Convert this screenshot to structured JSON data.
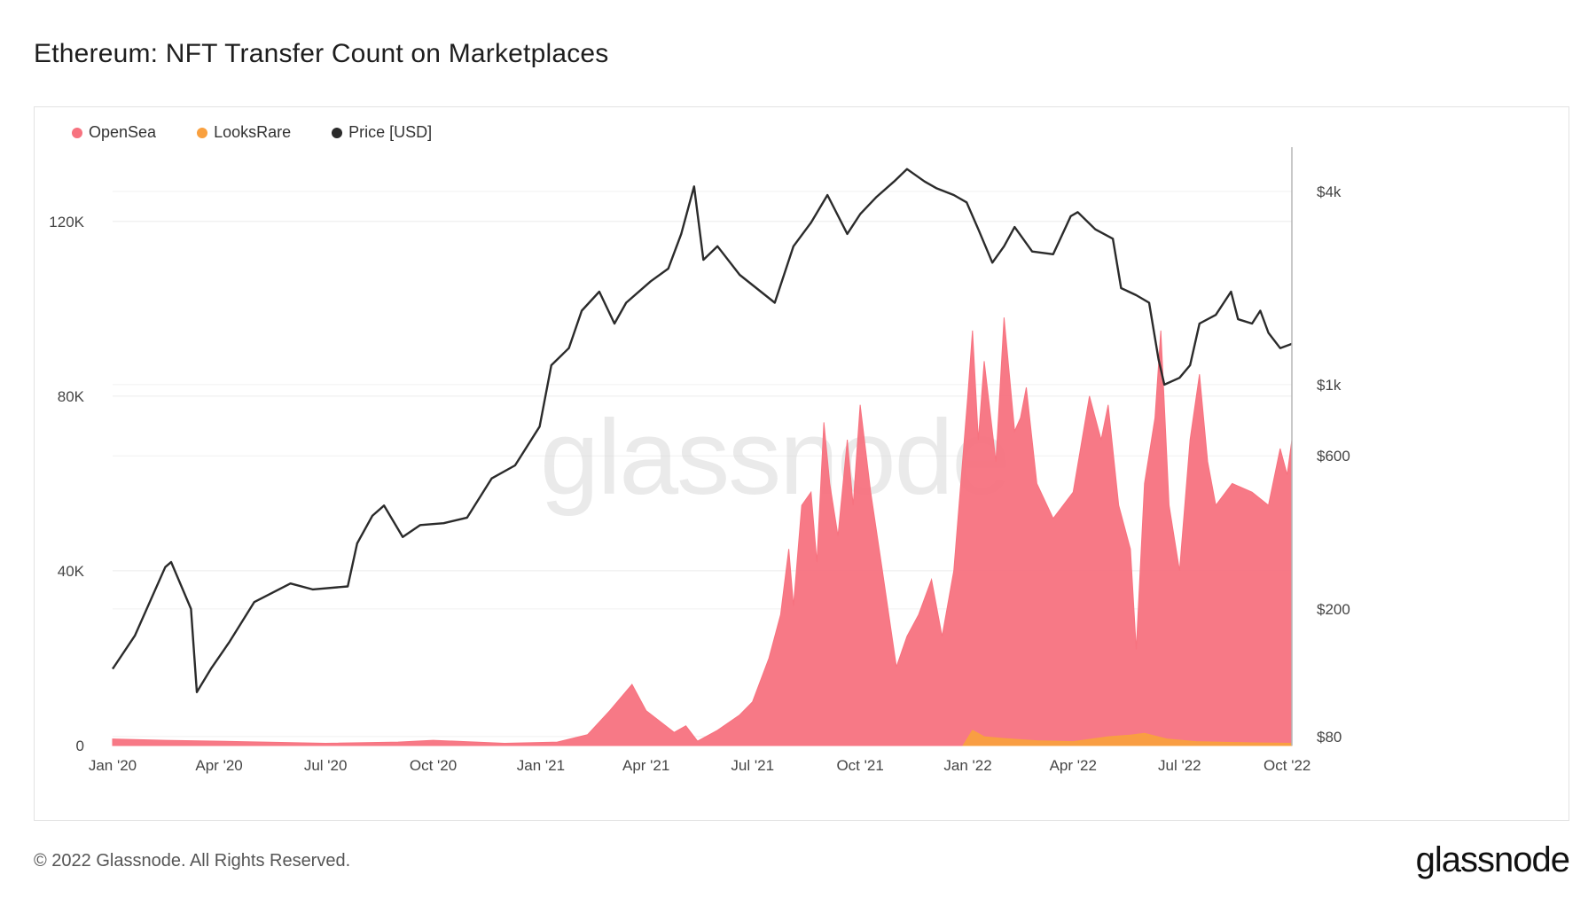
{
  "title": "Ethereum: NFT Transfer Count on Marketplaces",
  "footer": {
    "copyright": "© 2022 Glassnode. All Rights Reserved.",
    "logo": "glassnode"
  },
  "watermark": "glassnode",
  "legend": [
    {
      "label": "OpenSea",
      "color": "#f7727f"
    },
    {
      "label": "LooksRare",
      "color": "#f9a03f"
    },
    {
      "label": "Price [USD]",
      "color": "#2b2b2b"
    }
  ],
  "chart_data": {
    "type": "area",
    "title": "Ethereum: NFT Transfer Count on Marketplaces",
    "x_ticks": [
      "Jan '20",
      "Apr '20",
      "Jul '20",
      "Oct '20",
      "Jan '21",
      "Apr '21",
      "Jul '21",
      "Oct '21",
      "Jan '22",
      "Apr '22",
      "Jul '22",
      "Oct '22"
    ],
    "x_range": [
      "2020-01-01",
      "2022-10-05"
    ],
    "y_left": {
      "ticks": [
        0,
        40000,
        80000,
        120000
      ],
      "tick_labels": [
        "0",
        "40K",
        "80K",
        "120K"
      ],
      "range": [
        0,
        137000
      ]
    },
    "y_right": {
      "scale": "log",
      "ticks": [
        80,
        200,
        600,
        1000,
        4000
      ],
      "tick_labels": [
        "$80",
        "$200",
        "$600",
        "$1k",
        "$4k"
      ],
      "range": [
        75,
        5500
      ]
    },
    "grid": true,
    "legend_position": "top-left",
    "series": [
      {
        "name": "OpenSea",
        "axis": "left",
        "kind": "area",
        "color": "#f7727f",
        "points": [
          [
            "2020-01-01",
            1500
          ],
          [
            "2020-02-15",
            1200
          ],
          [
            "2020-04-01",
            1000
          ],
          [
            "2020-07-01",
            500
          ],
          [
            "2020-09-01",
            800
          ],
          [
            "2020-10-01",
            1200
          ],
          [
            "2020-12-01",
            500
          ],
          [
            "2021-01-15",
            800
          ],
          [
            "2021-02-10",
            2500
          ],
          [
            "2021-03-01",
            8000
          ],
          [
            "2021-03-20",
            14000
          ],
          [
            "2021-04-01",
            8000
          ],
          [
            "2021-04-25",
            3000
          ],
          [
            "2021-05-05",
            4500
          ],
          [
            "2021-05-15",
            1000
          ],
          [
            "2021-06-01",
            3500
          ],
          [
            "2021-06-20",
            7000
          ],
          [
            "2021-07-01",
            10000
          ],
          [
            "2021-07-15",
            20000
          ],
          [
            "2021-07-25",
            30000
          ],
          [
            "2021-08-01",
            45000
          ],
          [
            "2021-08-05",
            32000
          ],
          [
            "2021-08-12",
            55000
          ],
          [
            "2021-08-20",
            58000
          ],
          [
            "2021-08-25",
            42000
          ],
          [
            "2021-08-31",
            74000
          ],
          [
            "2021-09-05",
            60000
          ],
          [
            "2021-09-12",
            48000
          ],
          [
            "2021-09-20",
            70000
          ],
          [
            "2021-09-25",
            55000
          ],
          [
            "2021-10-01",
            78000
          ],
          [
            "2021-10-10",
            58000
          ],
          [
            "2021-10-20",
            40000
          ],
          [
            "2021-11-01",
            18000
          ],
          [
            "2021-11-10",
            25000
          ],
          [
            "2021-11-20",
            30000
          ],
          [
            "2021-12-01",
            38000
          ],
          [
            "2021-12-10",
            25000
          ],
          [
            "2021-12-20",
            40000
          ],
          [
            "2022-01-01",
            80000
          ],
          [
            "2022-01-05",
            95000
          ],
          [
            "2022-01-10",
            70000
          ],
          [
            "2022-01-15",
            88000
          ],
          [
            "2022-01-25",
            65000
          ],
          [
            "2022-02-01",
            98000
          ],
          [
            "2022-02-10",
            72000
          ],
          [
            "2022-02-15",
            75000
          ],
          [
            "2022-02-20",
            82000
          ],
          [
            "2022-03-01",
            60000
          ],
          [
            "2022-03-15",
            52000
          ],
          [
            "2022-04-01",
            58000
          ],
          [
            "2022-04-15",
            80000
          ],
          [
            "2022-04-25",
            70000
          ],
          [
            "2022-05-01",
            78000
          ],
          [
            "2022-05-10",
            55000
          ],
          [
            "2022-05-20",
            45000
          ],
          [
            "2022-05-25",
            22000
          ],
          [
            "2022-06-01",
            60000
          ],
          [
            "2022-06-10",
            75000
          ],
          [
            "2022-06-15",
            95000
          ],
          [
            "2022-06-22",
            55000
          ],
          [
            "2022-07-01",
            40000
          ],
          [
            "2022-07-10",
            70000
          ],
          [
            "2022-07-18",
            85000
          ],
          [
            "2022-07-25",
            65000
          ],
          [
            "2022-08-01",
            55000
          ],
          [
            "2022-08-15",
            60000
          ],
          [
            "2022-09-01",
            58000
          ],
          [
            "2022-09-15",
            55000
          ],
          [
            "2022-09-25",
            68000
          ],
          [
            "2022-10-01",
            62000
          ],
          [
            "2022-10-05",
            70000
          ]
        ]
      },
      {
        "name": "LooksRare",
        "axis": "left",
        "kind": "area",
        "color": "#f9a03f",
        "points": [
          [
            "2021-12-28",
            0
          ],
          [
            "2022-01-05",
            3500
          ],
          [
            "2022-01-15",
            2000
          ],
          [
            "2022-02-01",
            1600
          ],
          [
            "2022-03-01",
            1100
          ],
          [
            "2022-04-01",
            900
          ],
          [
            "2022-05-01",
            2000
          ],
          [
            "2022-05-20",
            2400
          ],
          [
            "2022-06-01",
            2800
          ],
          [
            "2022-06-20",
            1500
          ],
          [
            "2022-07-15",
            900
          ],
          [
            "2022-09-01",
            600
          ],
          [
            "2022-10-05",
            500
          ]
        ]
      },
      {
        "name": "Price [USD]",
        "axis": "right",
        "kind": "line",
        "color": "#2b2b2b",
        "points": [
          [
            "2020-01-01",
            130
          ],
          [
            "2020-01-20",
            165
          ],
          [
            "2020-02-15",
            270
          ],
          [
            "2020-02-20",
            280
          ],
          [
            "2020-03-08",
            200
          ],
          [
            "2020-03-13",
            110
          ],
          [
            "2020-03-25",
            130
          ],
          [
            "2020-04-10",
            158
          ],
          [
            "2020-05-01",
            210
          ],
          [
            "2020-06-01",
            240
          ],
          [
            "2020-06-20",
            230
          ],
          [
            "2020-07-20",
            235
          ],
          [
            "2020-07-28",
            320
          ],
          [
            "2020-08-10",
            390
          ],
          [
            "2020-08-20",
            420
          ],
          [
            "2020-09-05",
            335
          ],
          [
            "2020-09-20",
            365
          ],
          [
            "2020-10-10",
            370
          ],
          [
            "2020-10-30",
            385
          ],
          [
            "2020-11-20",
            510
          ],
          [
            "2020-12-10",
            560
          ],
          [
            "2020-12-31",
            740
          ],
          [
            "2021-01-10",
            1150
          ],
          [
            "2021-01-25",
            1300
          ],
          [
            "2021-02-05",
            1700
          ],
          [
            "2021-02-20",
            1950
          ],
          [
            "2021-03-05",
            1550
          ],
          [
            "2021-03-15",
            1800
          ],
          [
            "2021-04-05",
            2100
          ],
          [
            "2021-04-20",
            2300
          ],
          [
            "2021-05-01",
            2950
          ],
          [
            "2021-05-12",
            4150
          ],
          [
            "2021-05-20",
            2450
          ],
          [
            "2021-06-01",
            2700
          ],
          [
            "2021-06-20",
            2200
          ],
          [
            "2021-07-20",
            1800
          ],
          [
            "2021-08-05",
            2700
          ],
          [
            "2021-08-20",
            3200
          ],
          [
            "2021-09-03",
            3900
          ],
          [
            "2021-09-20",
            2950
          ],
          [
            "2021-10-01",
            3400
          ],
          [
            "2021-10-15",
            3850
          ],
          [
            "2021-10-30",
            4300
          ],
          [
            "2021-11-10",
            4700
          ],
          [
            "2021-11-25",
            4300
          ],
          [
            "2021-12-05",
            4100
          ],
          [
            "2021-12-20",
            3900
          ],
          [
            "2021-12-31",
            3700
          ],
          [
            "2022-01-10",
            3050
          ],
          [
            "2022-01-22",
            2400
          ],
          [
            "2022-02-01",
            2700
          ],
          [
            "2022-02-10",
            3100
          ],
          [
            "2022-02-25",
            2600
          ],
          [
            "2022-03-15",
            2550
          ],
          [
            "2022-03-30",
            3350
          ],
          [
            "2022-04-05",
            3450
          ],
          [
            "2022-04-20",
            3050
          ],
          [
            "2022-05-05",
            2850
          ],
          [
            "2022-05-12",
            2000
          ],
          [
            "2022-05-25",
            1900
          ],
          [
            "2022-06-05",
            1800
          ],
          [
            "2022-06-13",
            1200
          ],
          [
            "2022-06-18",
            1000
          ],
          [
            "2022-07-01",
            1050
          ],
          [
            "2022-07-10",
            1150
          ],
          [
            "2022-07-18",
            1550
          ],
          [
            "2022-08-01",
            1650
          ],
          [
            "2022-08-14",
            1950
          ],
          [
            "2022-08-20",
            1600
          ],
          [
            "2022-09-01",
            1550
          ],
          [
            "2022-09-08",
            1700
          ],
          [
            "2022-09-15",
            1450
          ],
          [
            "2022-09-25",
            1300
          ],
          [
            "2022-10-05",
            1340
          ]
        ]
      }
    ]
  }
}
